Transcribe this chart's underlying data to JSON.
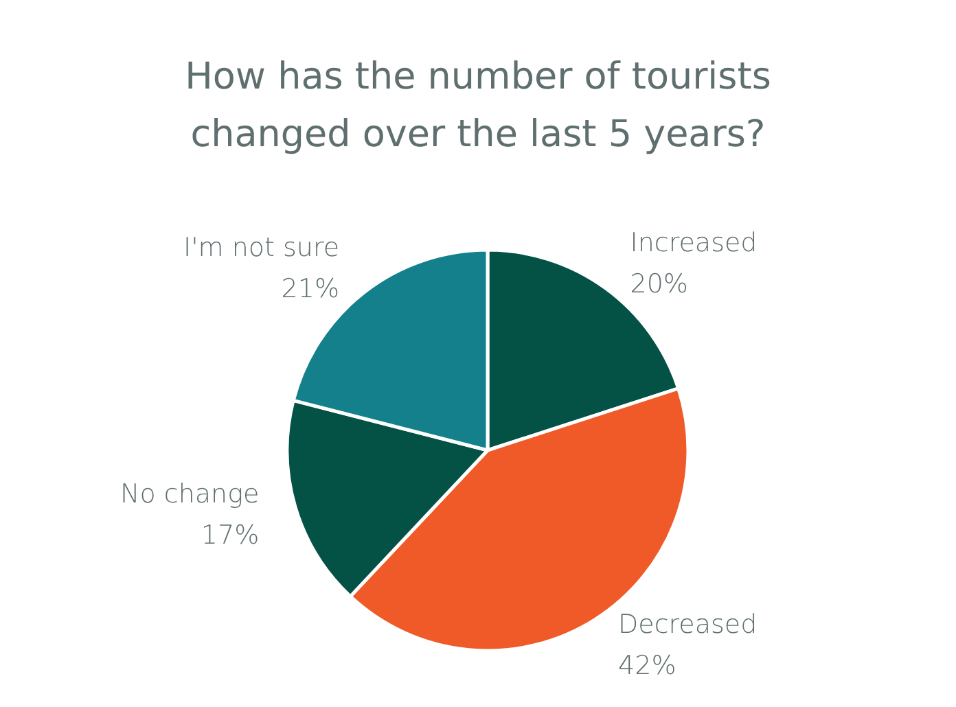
{
  "chart_data": {
    "type": "pie",
    "title": "How has the number of tourists\nchanged over the last 5 years?",
    "categories": [
      "Increased",
      "Decreased",
      "No change",
      "I'm not sure"
    ],
    "values": [
      20,
      42,
      17,
      21
    ],
    "value_labels": [
      "20%",
      "42%",
      "17%",
      "21%"
    ],
    "colors": [
      "#045146",
      "#f05a28",
      "#045146",
      "#13808c"
    ],
    "legend": false
  }
}
